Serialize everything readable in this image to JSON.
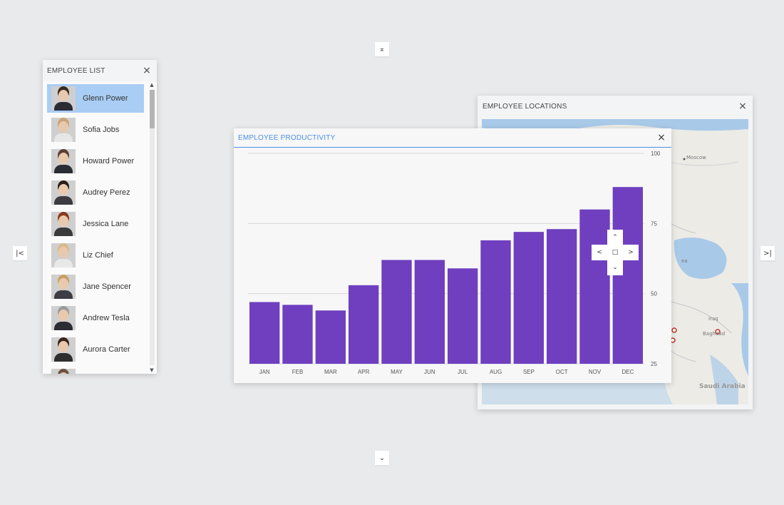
{
  "edge_buttons": {
    "top": "⌅",
    "bottom": "⌄",
    "left": "|<",
    "right": ">|"
  },
  "employee_list": {
    "title": "EMPLOYEE LIST",
    "close": "×",
    "scroll_up": "▲",
    "scroll_down": "▼",
    "items": [
      {
        "name": "Glenn Power",
        "selected": true,
        "hair": "#3a2a22",
        "shirt": "#2b2b33"
      },
      {
        "name": "Sofia Jobs",
        "selected": false,
        "hair": "#c9a37a",
        "shirt": "#e6e6e6"
      },
      {
        "name": "Howard Power",
        "selected": false,
        "hair": "#5a3e2e",
        "shirt": "#2a2d34"
      },
      {
        "name": "Audrey Perez",
        "selected": false,
        "hair": "#2b1d17",
        "shirt": "#3b3b40"
      },
      {
        "name": "Jessica Lane",
        "selected": false,
        "hair": "#8a3b1e",
        "shirt": "#3a3a3a"
      },
      {
        "name": "Liz Chief",
        "selected": false,
        "hair": "#d9b98c",
        "shirt": "#e8e8e8"
      },
      {
        "name": "Jane Spencer",
        "selected": false,
        "hair": "#c8a066",
        "shirt": "#3d3d44"
      },
      {
        "name": "Andrew Tesla",
        "selected": false,
        "hair": "#9c9c9c",
        "shirt": "#2c2c33"
      },
      {
        "name": "Aurora Carter",
        "selected": false,
        "hair": "#3a2418",
        "shirt": "#2e2e2e"
      },
      {
        "name": "",
        "selected": false,
        "hair": "#6b5242",
        "shirt": "#444"
      }
    ]
  },
  "map_window": {
    "title": "EMPLOYEE LOCATIONS",
    "close": "×",
    "labels": {
      "moscow": "Moscow",
      "iraq": "Iraq",
      "baghdad": "Baghdad",
      "saudi": "Saudi Arabia",
      "sea": "ea"
    }
  },
  "productivity_window": {
    "title": "EMPLOYEE PRODUCTIVITY",
    "close": "×"
  },
  "nav_pad": {
    "up": "⌃",
    "down": "⌄",
    "left": "<",
    "right": ">",
    "center": "□"
  },
  "colors": {
    "bar": "#6f3fbf",
    "selected": "#a9cdf4",
    "accent": "#4a8fe0",
    "map_water": "#a9c9e8",
    "map_land": "#ecebe6",
    "marker": "#c0392b"
  },
  "chart_data": {
    "type": "bar",
    "title": "EMPLOYEE PRODUCTIVITY",
    "categories": [
      "JAN",
      "FEB",
      "MAR",
      "APR",
      "MAY",
      "JUN",
      "JUL",
      "AUG",
      "SEP",
      "OCT",
      "NOV",
      "DEC"
    ],
    "values": [
      47,
      46,
      44,
      53,
      62,
      62,
      59,
      69,
      72,
      73,
      80,
      88
    ],
    "ylim": [
      25,
      100
    ],
    "y_ticks": [
      25,
      50,
      75,
      100
    ],
    "y_axis_side": "right",
    "grid": true
  }
}
